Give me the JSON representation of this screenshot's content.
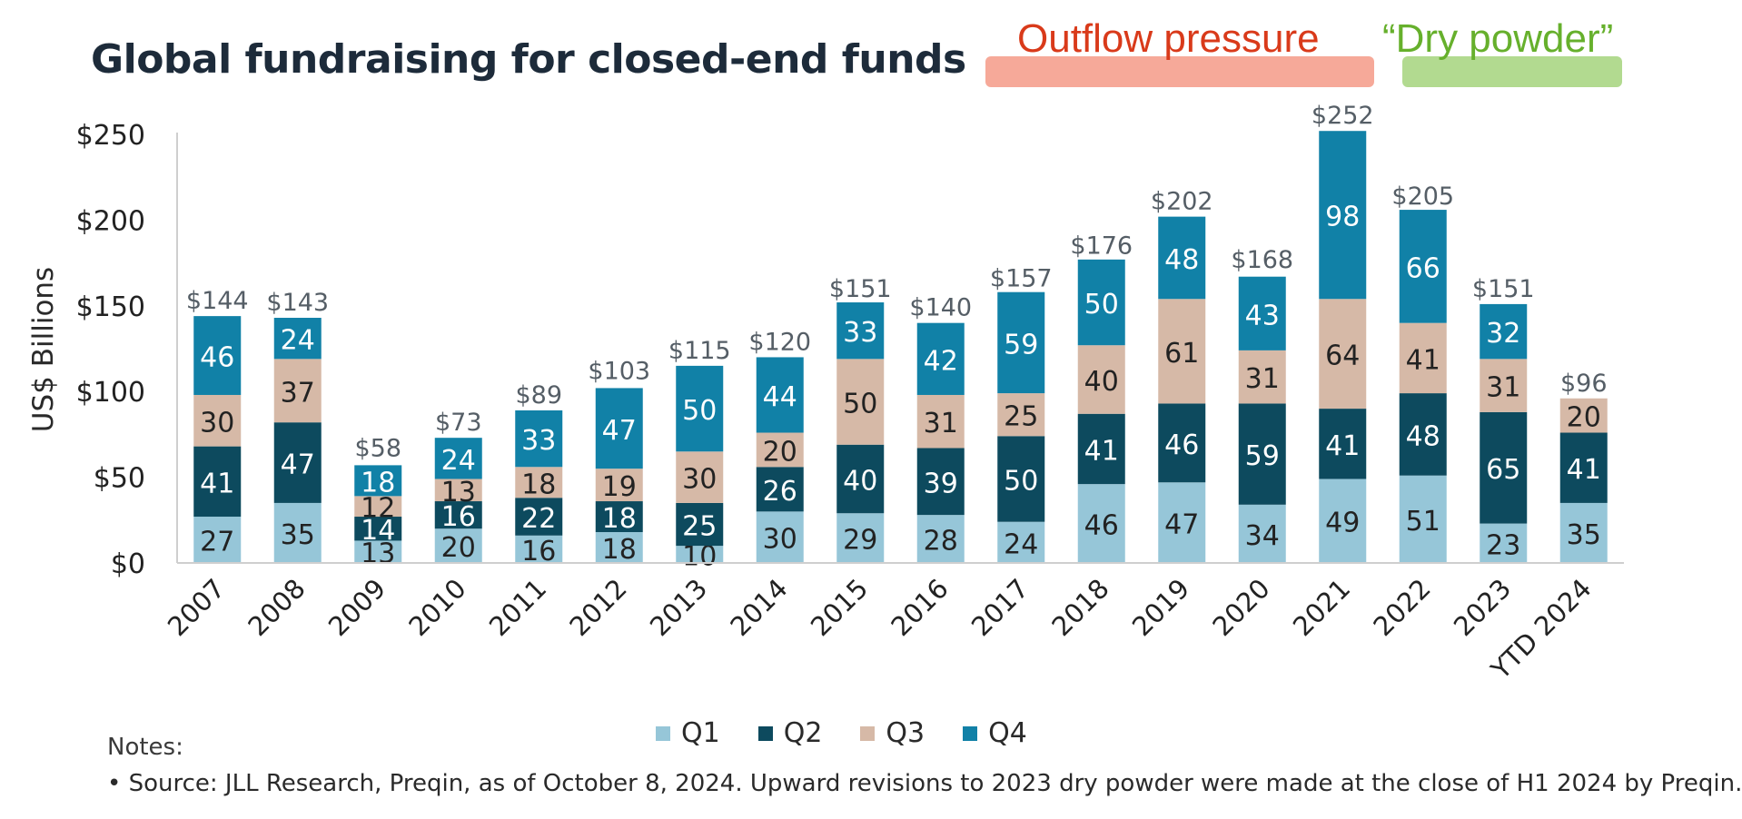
{
  "title": "Global fundraising for closed-end funds",
  "annotations": {
    "outflow": "Outflow pressure",
    "dry_powder": "“Dry powder”"
  },
  "notes": {
    "label": "Notes:",
    "bullet": "•",
    "text": "Source: JLL Research, Preqin, as of October 8, 2024. Upward revisions to 2023 dry powder were made at the close of H1 2024 by Preqin."
  },
  "colors": {
    "Q1": "#96c6d8",
    "Q2": "#0d4a5e",
    "Q3": "#d6b9a7",
    "Q4": "#1181a7",
    "outflow_text": "#d93a1a",
    "outflow_highlight": "#f59a87",
    "dry_text": "#66b02c",
    "dry_highlight": "#a5d47c"
  },
  "chart_data": {
    "type": "bar",
    "stacked": true,
    "title": "Global fundraising for closed-end funds",
    "xlabel": "",
    "ylabel": "US$ Billions",
    "ylim": [
      0,
      250
    ],
    "yticks": [
      0,
      50,
      100,
      150,
      200,
      250
    ],
    "ytick_labels": [
      "$0",
      "$50",
      "$100",
      "$150",
      "$200",
      "$250"
    ],
    "categories": [
      "2007",
      "2008",
      "2009",
      "2010",
      "2011",
      "2012",
      "2013",
      "2014",
      "2015",
      "2016",
      "2017",
      "2018",
      "2019",
      "2020",
      "2021",
      "2022",
      "2023",
      "YTD 2024"
    ],
    "series": [
      {
        "name": "Q1",
        "values": [
          27,
          35,
          13,
          20,
          16,
          18,
          10,
          30,
          29,
          28,
          24,
          46,
          47,
          34,
          49,
          51,
          23,
          35
        ]
      },
      {
        "name": "Q2",
        "values": [
          41,
          47,
          14,
          16,
          22,
          18,
          25,
          26,
          40,
          39,
          50,
          41,
          46,
          59,
          41,
          48,
          65,
          41
        ]
      },
      {
        "name": "Q3",
        "values": [
          30,
          37,
          12,
          13,
          18,
          19,
          30,
          20,
          50,
          31,
          25,
          40,
          61,
          31,
          64,
          41,
          31,
          20
        ]
      },
      {
        "name": "Q4",
        "values": [
          46,
          24,
          18,
          24,
          33,
          47,
          50,
          44,
          33,
          42,
          59,
          50,
          48,
          43,
          98,
          66,
          32,
          null
        ]
      }
    ],
    "totals": [
      "$144",
      "$143",
      "$58",
      "$73",
      "$89",
      "$103",
      "$115",
      "$120",
      "$151",
      "$140",
      "$157",
      "$176",
      "$202",
      "$168",
      "$252",
      "$205",
      "$151",
      "$96"
    ],
    "total_values": [
      144,
      143,
      58,
      73,
      89,
      103,
      115,
      120,
      151,
      140,
      157,
      176,
      202,
      168,
      252,
      205,
      151,
      96
    ],
    "legend": [
      "Q1",
      "Q2",
      "Q3",
      "Q4"
    ],
    "legend_position": "bottom-center",
    "grid": false
  }
}
